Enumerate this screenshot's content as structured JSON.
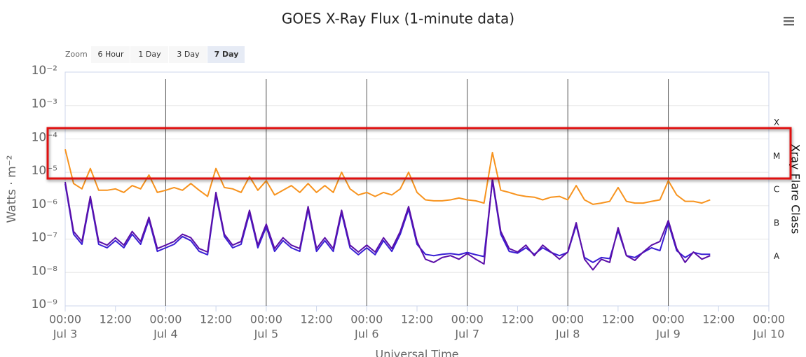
{
  "chart_data": {
    "type": "line",
    "title": "GOES X-Ray Flux (1-minute data)",
    "zoom": {
      "label": "Zoom",
      "buttons": [
        "6 Hour",
        "1 Day",
        "3 Day",
        "7 Day"
      ],
      "selected": 3
    },
    "y_label": "Watts · m⁻²",
    "y2_label": "Xray Flare Class",
    "x_label": "Universal Time",
    "log_scale": true,
    "grid": true,
    "xlim": [
      0,
      168
    ],
    "xticks": [
      {
        "value": 0,
        "label": "00:00",
        "date": "Jul 3"
      },
      {
        "value": 12,
        "label": "12:00"
      },
      {
        "value": 24,
        "label": "00:00",
        "date": "Jul 4"
      },
      {
        "value": 36,
        "label": "12:00"
      },
      {
        "value": 48,
        "label": "00:00",
        "date": "Jul 5"
      },
      {
        "value": 60,
        "label": "12:00"
      },
      {
        "value": 72,
        "label": "00:00",
        "date": "Jul 6"
      },
      {
        "value": 84,
        "label": "12:00"
      },
      {
        "value": 96,
        "label": "00:00",
        "date": "Jul 7"
      },
      {
        "value": 108,
        "label": "12:00"
      },
      {
        "value": 120,
        "label": "00:00",
        "date": "Jul 8"
      },
      {
        "value": 132,
        "label": "12:00"
      },
      {
        "value": 144,
        "label": "00:00",
        "date": "Jul 9"
      },
      {
        "value": 156,
        "label": "12:00"
      },
      {
        "value": 168,
        "label": "00:00",
        "date": "Jul 10"
      }
    ],
    "ylim": [
      1e-09,
      0.01
    ],
    "yticks": [
      {
        "value": 1e-09,
        "label": "10⁻⁹"
      },
      {
        "value": 1e-08,
        "label": "10⁻⁸"
      },
      {
        "value": 1e-07,
        "label": "10⁻⁷"
      },
      {
        "value": 1e-06,
        "label": "10⁻⁶"
      },
      {
        "value": 1e-05,
        "label": "10⁻⁵"
      },
      {
        "value": 0.0001,
        "label": "10⁻⁴"
      },
      {
        "value": 0.001,
        "label": "10⁻³"
      },
      {
        "value": 0.01,
        "label": "10⁻²"
      }
    ],
    "y2lim": [
      1e-09,
      0.01
    ],
    "y2ticks": [
      {
        "value": 0.0003,
        "label": "X"
      },
      {
        "value": 3e-05,
        "label": "M"
      },
      {
        "value": 3e-06,
        "label": "C"
      },
      {
        "value": 3e-07,
        "label": "B"
      },
      {
        "value": 3e-08,
        "label": "A"
      }
    ],
    "x": [
      0,
      2,
      4,
      6,
      8,
      10,
      12,
      14,
      16,
      18,
      20,
      22,
      24,
      26,
      28,
      30,
      32,
      34,
      36,
      38,
      40,
      42,
      44,
      46,
      48,
      50,
      52,
      54,
      56,
      58,
      60,
      62,
      64,
      66,
      68,
      70,
      72,
      74,
      76,
      78,
      80,
      82,
      84,
      86,
      88,
      90,
      92,
      94,
      96,
      98,
      100,
      102,
      104,
      106,
      108,
      110,
      112,
      114,
      116,
      118,
      120,
      122,
      124,
      126,
      128,
      130,
      132,
      134,
      136,
      138,
      140,
      142,
      144,
      146,
      148,
      150,
      152,
      154
    ],
    "series": [
      {
        "color": "#f7931e",
        "values": [
          4.9e-05,
          4.6e-06,
          3.2e-06,
          1.3e-05,
          2.9e-06,
          2.9e-06,
          3.2e-06,
          2.5e-06,
          4e-06,
          3.2e-06,
          8.3e-06,
          2.5e-06,
          2.9e-06,
          3.5e-06,
          2.9e-06,
          4.6e-06,
          2.9e-06,
          1.9e-06,
          1.3e-05,
          3.5e-06,
          3.2e-06,
          2.5e-06,
          7.5e-06,
          2.9e-06,
          5.6e-06,
          2.1e-06,
          2.9e-06,
          4e-06,
          2.5e-06,
          4.6e-06,
          2.5e-06,
          4e-06,
          2.5e-06,
          1e-05,
          3.2e-06,
          2.1e-06,
          2.5e-06,
          1.9e-06,
          2.5e-06,
          2.1e-06,
          3.2e-06,
          1e-05,
          2.5e-06,
          1.5e-06,
          1.4e-06,
          1.4e-06,
          1.5e-06,
          1.7e-06,
          1.5e-06,
          1.4e-06,
          1.2e-06,
          3.9e-05,
          2.9e-06,
          2.5e-06,
          2.1e-06,
          1.9e-06,
          1.8e-06,
          1.5e-06,
          1.8e-06,
          1.9e-06,
          1.5e-06,
          4e-06,
          1.5e-06,
          1.1e-06,
          1.2e-06,
          1.35e-06,
          3.5e-06,
          1.35e-06,
          1.2e-06,
          1.2e-06,
          1.35e-06,
          1.5e-06,
          5.6e-06,
          2.1e-06,
          1.35e-06,
          1.35e-06,
          1.2e-06,
          1.5e-06
        ]
      },
      {
        "color": "#3a1fd4",
        "values": [
          4.5e-06,
          1.4e-07,
          7e-08,
          1.6e-06,
          7e-08,
          5.5e-08,
          9e-08,
          5.5e-08,
          1.4e-07,
          7e-08,
          3.8e-07,
          4.3e-08,
          5.5e-08,
          7e-08,
          1.2e-07,
          9e-08,
          4.3e-08,
          3.4e-08,
          2.1e-06,
          1.2e-07,
          5.5e-08,
          7e-08,
          6e-07,
          5.5e-08,
          2.3e-07,
          4.3e-08,
          9e-08,
          5.5e-08,
          4.3e-08,
          7.8e-07,
          4.3e-08,
          9e-08,
          4.3e-08,
          6e-07,
          5.5e-08,
          3.4e-08,
          5.5e-08,
          3.4e-08,
          9e-08,
          4.3e-08,
          1.4e-07,
          7.8e-07,
          7e-08,
          3.5e-08,
          3.2e-08,
          3.5e-08,
          3.7e-08,
          3.4e-08,
          4e-08,
          3.4e-08,
          3e-08,
          5.5e-06,
          1.4e-07,
          4.3e-08,
          3.8e-08,
          5.5e-08,
          3.5e-08,
          5.5e-08,
          4e-08,
          3.2e-08,
          4e-08,
          2.6e-07,
          2.8e-08,
          2e-08,
          2.8e-08,
          2.6e-08,
          1.8e-07,
          3.2e-08,
          2.8e-08,
          4e-08,
          5.5e-08,
          4.5e-08,
          3e-07,
          4.5e-08,
          2.8e-08,
          4e-08,
          3.5e-08,
          3.5e-08
        ]
      },
      {
        "color": "#5b0fa8",
        "values": [
          5.1e-06,
          1.7e-07,
          8.5e-08,
          1.9e-06,
          8.5e-08,
          6.6e-08,
          1.1e-07,
          6.6e-08,
          1.7e-07,
          8.5e-08,
          4.5e-07,
          5.2e-08,
          6.6e-08,
          8.5e-08,
          1.4e-07,
          1.1e-07,
          5.2e-08,
          4.1e-08,
          2.5e-06,
          1.4e-07,
          6.6e-08,
          8.5e-08,
          7.3e-07,
          6.6e-08,
          2.8e-07,
          5.2e-08,
          1.1e-07,
          6.6e-08,
          5.2e-08,
          9.4e-07,
          5.2e-08,
          1.1e-07,
          5.2e-08,
          7.3e-07,
          6.6e-08,
          4.1e-08,
          6.6e-08,
          4.1e-08,
          1.1e-07,
          5.2e-08,
          1.7e-07,
          9.4e-07,
          8.5e-08,
          2.5e-08,
          2e-08,
          2.8e-08,
          3.2e-08,
          2.5e-08,
          3.7e-08,
          2.5e-08,
          1.8e-08,
          6.5e-06,
          1.7e-07,
          5.2e-08,
          4.1e-08,
          6.6e-08,
          3.2e-08,
          6.6e-08,
          4.1e-08,
          2.5e-08,
          4.1e-08,
          3.1e-07,
          2.5e-08,
          1.2e-08,
          2.5e-08,
          2e-08,
          2.2e-07,
          3.2e-08,
          2.3e-08,
          4.1e-08,
          6.6e-08,
          8.5e-08,
          3.6e-07,
          5.2e-08,
          2e-08,
          4.1e-08,
          2.5e-08,
          3.2e-08
        ]
      }
    ]
  }
}
